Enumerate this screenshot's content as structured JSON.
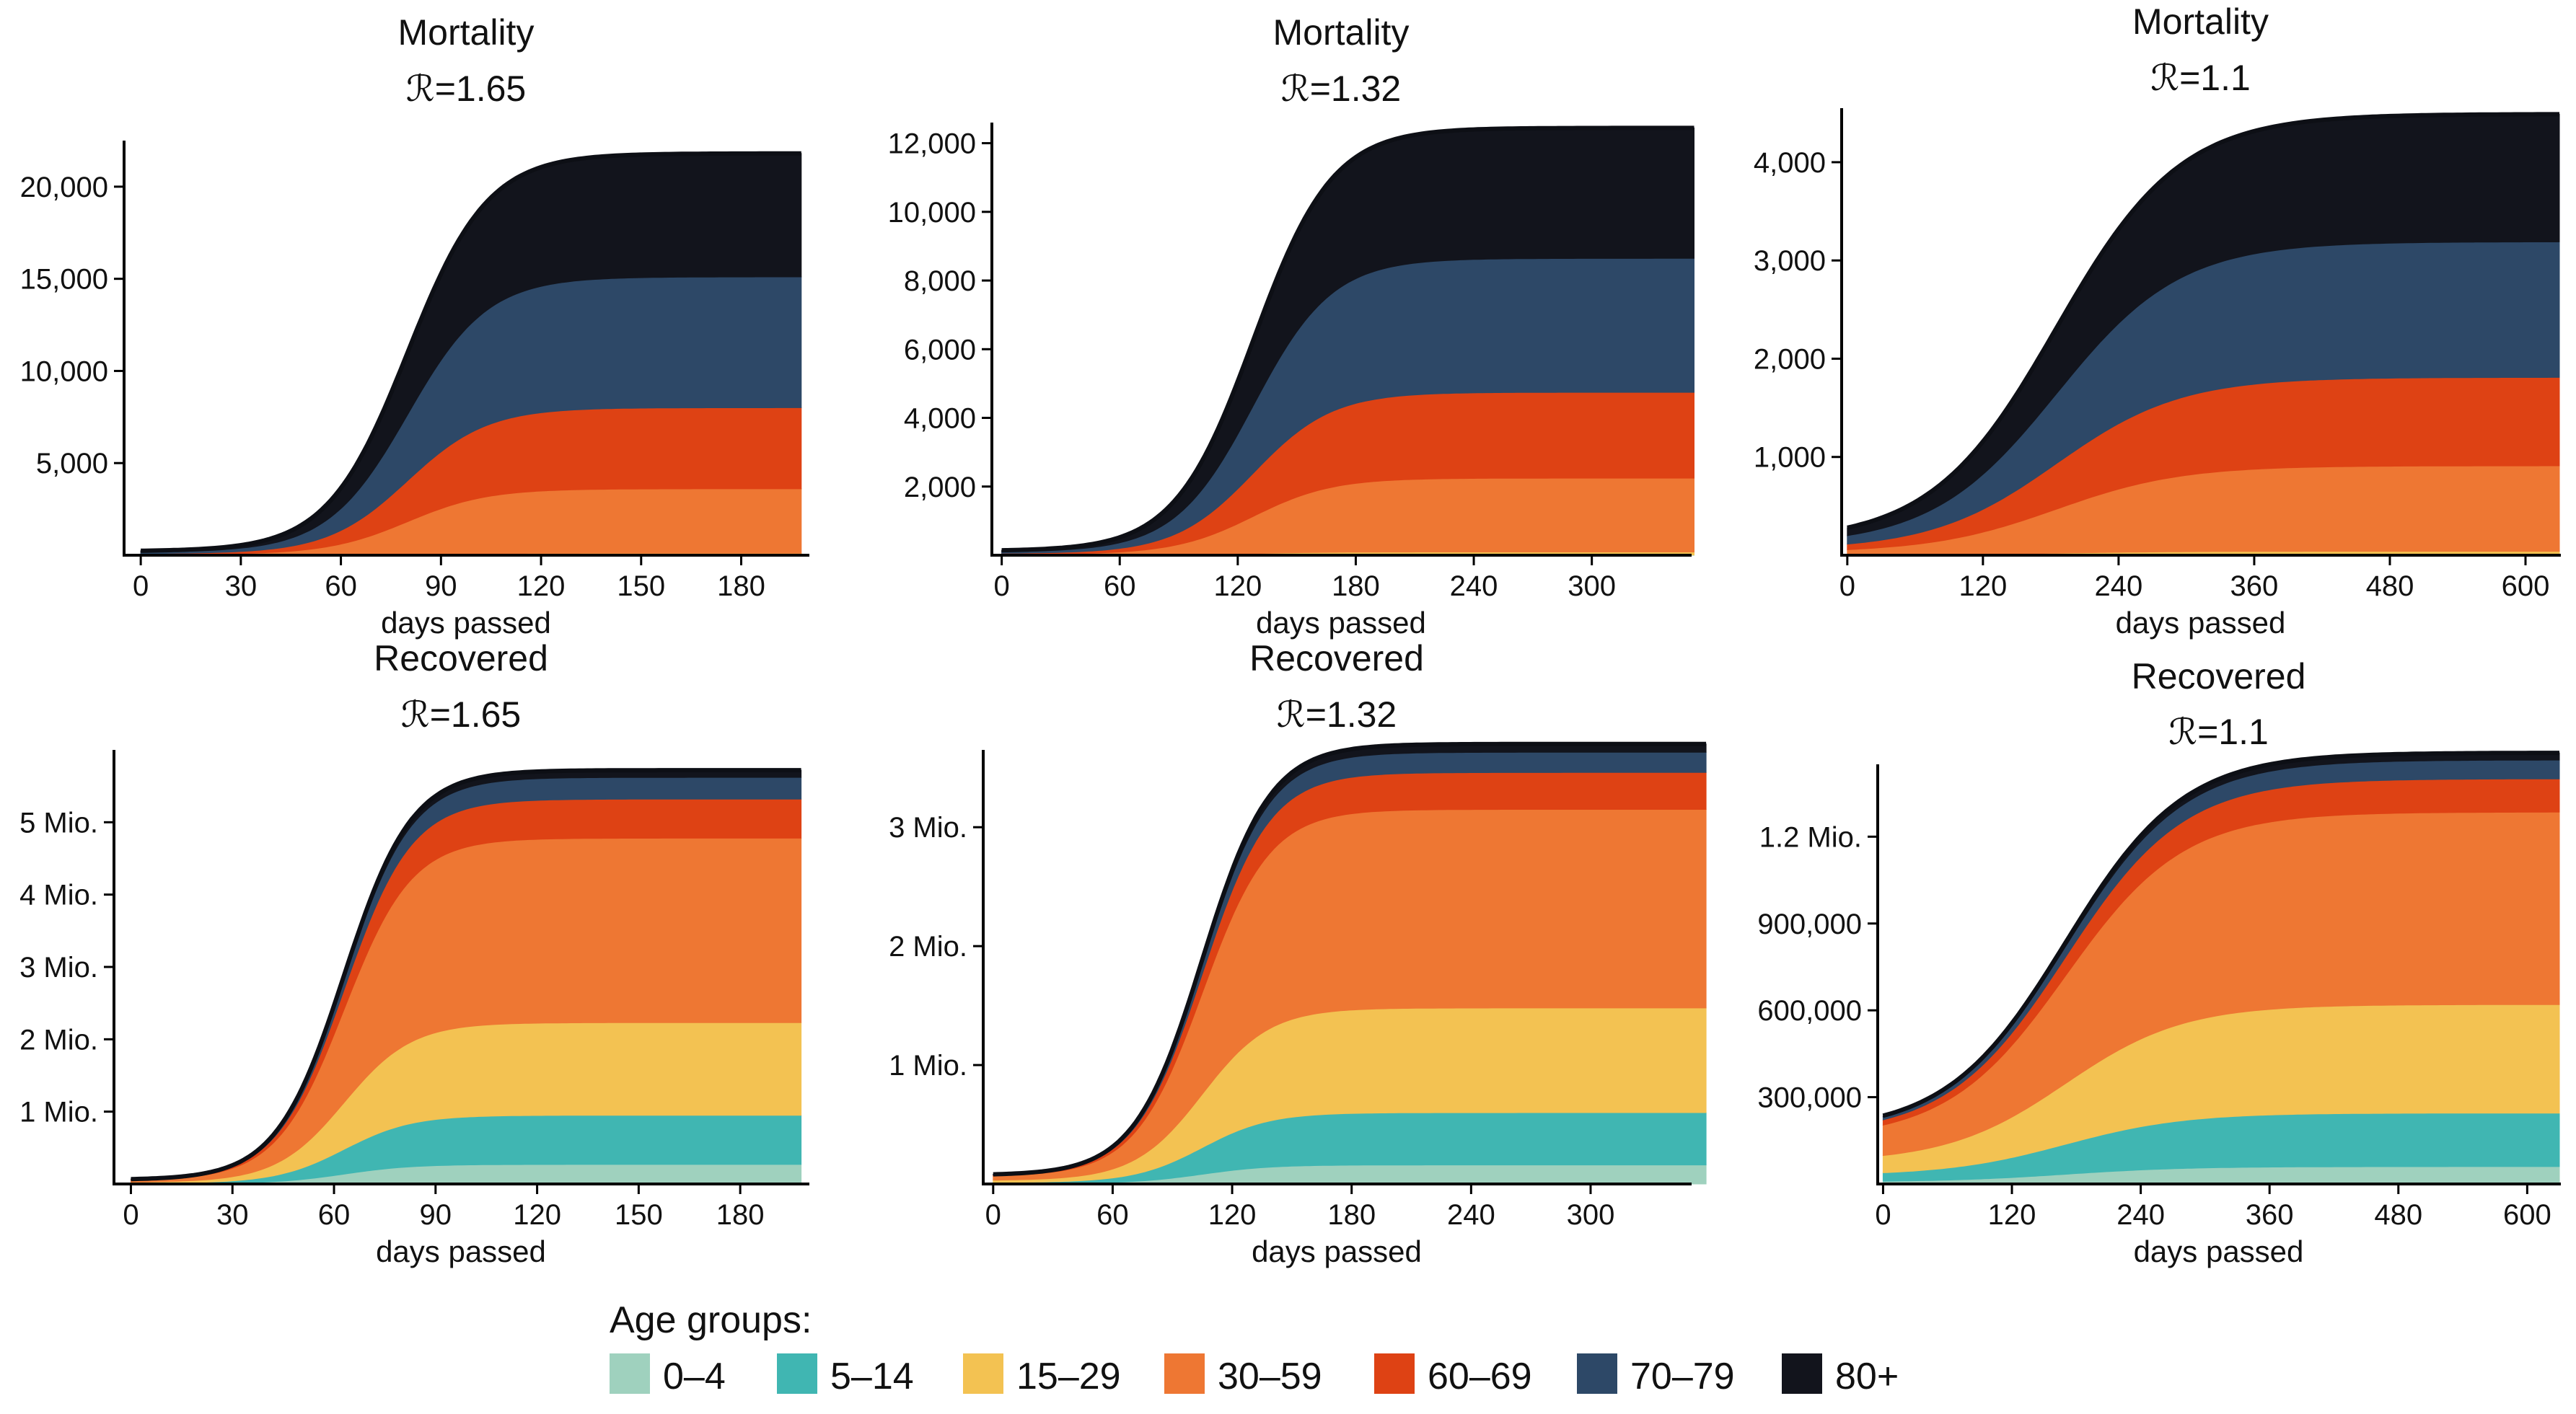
{
  "chart_data": [
    {
      "type": "area",
      "stacked": true,
      "title": "Mortality",
      "subtitle": "ℛ=1.65",
      "xlabel": "days passed",
      "ylabel": "",
      "xlim": [
        -5,
        200
      ],
      "ylim": [
        0,
        22500
      ],
      "x_ticks": [
        0,
        30,
        60,
        90,
        120,
        150,
        180
      ],
      "y_ticks": [
        5000,
        10000,
        15000,
        20000
      ],
      "y_tick_labels": [
        "5,000",
        "10,000",
        "15,000",
        "20,000"
      ],
      "x_max": 198,
      "curve": {
        "midpoint": 80,
        "scale": 12,
        "start_fraction": 0.01
      },
      "series": [
        {
          "name": "0–4",
          "final": 0
        },
        {
          "name": "5–14",
          "final": 5
        },
        {
          "name": "15–29",
          "final": 100
        },
        {
          "name": "30–59",
          "final": 3500
        },
        {
          "name": "60–69",
          "final": 4400
        },
        {
          "name": "70–79",
          "final": 7100
        },
        {
          "name": "80+",
          "final": 6700
        }
      ]
    },
    {
      "type": "area",
      "stacked": true,
      "title": "Mortality",
      "subtitle": "ℛ=1.32",
      "xlabel": "days passed",
      "ylabel": "",
      "xlim": [
        -5,
        350
      ],
      "ylim": [
        0,
        12600
      ],
      "x_ticks": [
        0,
        60,
        120,
        180,
        240,
        300
      ],
      "y_ticks": [
        2000,
        4000,
        6000,
        8000,
        10000,
        12000
      ],
      "y_tick_labels": [
        "2,000",
        "4,000",
        "6,000",
        "8,000",
        "10,000",
        "12,000"
      ],
      "x_max": 352,
      "curve": {
        "midpoint": 128,
        "scale": 20,
        "start_fraction": 0.01
      },
      "series": [
        {
          "name": "0–4",
          "final": 0
        },
        {
          "name": "5–14",
          "final": 5
        },
        {
          "name": "15–29",
          "final": 90
        },
        {
          "name": "30–59",
          "final": 2150
        },
        {
          "name": "60–69",
          "final": 2500
        },
        {
          "name": "70–79",
          "final": 3900
        },
        {
          "name": "80+",
          "final": 3800
        }
      ]
    },
    {
      "type": "area",
      "stacked": true,
      "title": "Mortality",
      "subtitle": "ℛ=1.1",
      "xlabel": "days passed",
      "ylabel": "",
      "xlim": [
        -5,
        630
      ],
      "ylim": [
        0,
        4550
      ],
      "x_ticks": [
        0,
        120,
        240,
        360,
        480,
        600
      ],
      "y_ticks": [
        1000,
        2000,
        3000,
        4000
      ],
      "y_tick_labels": [
        "1,000",
        "2,000",
        "3,000",
        "4,000"
      ],
      "x_max": 630,
      "curve": {
        "midpoint": 185,
        "scale": 55,
        "start_fraction": 0.03
      },
      "series": [
        {
          "name": "0–4",
          "final": 0
        },
        {
          "name": "5–14",
          "final": 5
        },
        {
          "name": "15–29",
          "final": 35
        },
        {
          "name": "30–59",
          "final": 870
        },
        {
          "name": "60–69",
          "final": 900
        },
        {
          "name": "70–79",
          "final": 1380
        },
        {
          "name": "80+",
          "final": 1300
        }
      ]
    },
    {
      "type": "area",
      "stacked": true,
      "title": "Recovered",
      "subtitle": "ℛ=1.65",
      "xlabel": "days passed",
      "ylabel": "",
      "xlim": [
        -5,
        200
      ],
      "ylim": [
        0,
        6000000
      ],
      "x_ticks": [
        0,
        30,
        60,
        90,
        120,
        150,
        180
      ],
      "y_ticks": [
        1000000,
        2000000,
        3000000,
        4000000,
        5000000
      ],
      "y_tick_labels": [
        "1 Mio.",
        "2 Mio.",
        "3 Mio.",
        "4 Mio.",
        "5 Mio."
      ],
      "x_max": 198,
      "curve": {
        "midpoint": 63,
        "scale": 10,
        "start_fraction": 0.01
      },
      "series": [
        {
          "name": "0–4",
          "final": 270000
        },
        {
          "name": "5–14",
          "final": 680000
        },
        {
          "name": "15–29",
          "final": 1280000
        },
        {
          "name": "30–59",
          "final": 2550000
        },
        {
          "name": "60–69",
          "final": 540000
        },
        {
          "name": "70–79",
          "final": 300000
        },
        {
          "name": "80+",
          "final": 100000
        }
      ]
    },
    {
      "type": "area",
      "stacked": true,
      "title": "Recovered",
      "subtitle": "ℛ=1.32",
      "xlabel": "days passed",
      "ylabel": "",
      "xlim": [
        -5,
        350
      ],
      "ylim": [
        0,
        3650000
      ],
      "x_ticks": [
        0,
        60,
        120,
        180,
        240,
        300
      ],
      "y_ticks": [
        1000000,
        2000000,
        3000000
      ],
      "y_tick_labels": [
        "1 Mio.",
        "2 Mio.",
        "3 Mio."
      ],
      "x_max": 358,
      "curve": {
        "midpoint": 105,
        "scale": 17,
        "start_fraction": 0.02
      },
      "series": [
        {
          "name": "0–4",
          "final": 160000
        },
        {
          "name": "5–14",
          "final": 440000
        },
        {
          "name": "15–29",
          "final": 880000
        },
        {
          "name": "30–59",
          "final": 1670000
        },
        {
          "name": "60–69",
          "final": 310000
        },
        {
          "name": "70–79",
          "final": 170000
        },
        {
          "name": "80+",
          "final": 70000
        }
      ]
    },
    {
      "type": "area",
      "stacked": true,
      "title": "Recovered",
      "subtitle": "ℛ=1.1",
      "xlabel": "days passed",
      "ylabel": "",
      "xlim": [
        -5,
        630
      ],
      "ylim": [
        0,
        1450000
      ],
      "x_ticks": [
        0,
        120,
        240,
        360,
        480,
        600
      ],
      "y_ticks": [
        300000,
        600000,
        900000,
        1200000
      ],
      "y_tick_labels": [
        "300,000",
        "600,000",
        "900,000",
        "1.2 Mio."
      ],
      "x_max": 630,
      "curve": {
        "midpoint": 170,
        "scale": 55,
        "start_fraction": 0.12
      },
      "series": [
        {
          "name": "0–4",
          "final": 60000
        },
        {
          "name": "5–14",
          "final": 185000
        },
        {
          "name": "15–29",
          "final": 375000
        },
        {
          "name": "30–59",
          "final": 665000
        },
        {
          "name": "60–69",
          "final": 115000
        },
        {
          "name": "70–79",
          "final": 65000
        },
        {
          "name": "80+",
          "final": 25000
        }
      ]
    }
  ],
  "legend": {
    "title": "Age groups:",
    "items": [
      {
        "name": "0–4",
        "color": "#9fd1be"
      },
      {
        "name": "5–14",
        "color": "#40b6b2"
      },
      {
        "name": "15–29",
        "color": "#f3c252"
      },
      {
        "name": "30–59",
        "color": "#ee7733"
      },
      {
        "name": "60–69",
        "color": "#de4214"
      },
      {
        "name": "70–79",
        "color": "#2d4867"
      },
      {
        "name": "80+",
        "color": "#12141c"
      }
    ]
  }
}
